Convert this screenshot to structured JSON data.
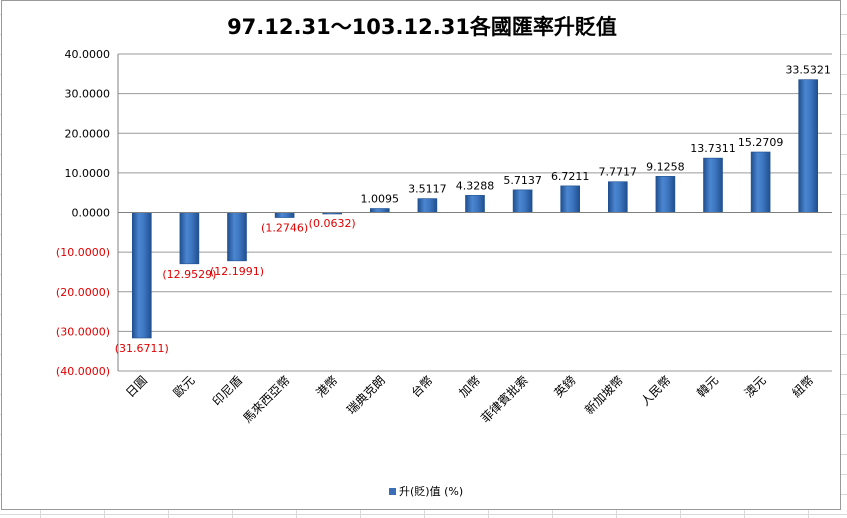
{
  "chart_data": {
    "type": "bar",
    "title": "97.12.31～103.12.31各國匯率升貶值",
    "categories": [
      "日圓",
      "歐元",
      "印尼盾",
      "馬來西亞幣",
      "港幣",
      "瑞典克朗",
      "台幣",
      "加幣",
      "菲律賓批索",
      "英鎊",
      "新加坡幣",
      "人民幣",
      "韓元",
      "澳元",
      "紐幣"
    ],
    "series": [
      {
        "name": "升(貶)值 (%)",
        "values": [
          -31.6711,
          -12.9529,
          -12.1991,
          -1.2746,
          -0.0632,
          1.0095,
          3.5117,
          4.3288,
          5.7137,
          6.7211,
          7.7717,
          9.1258,
          13.7311,
          15.2709,
          33.5321
        ]
      }
    ],
    "data_labels": [
      "(31.6711)",
      "(12.9529)",
      "(12.1991)",
      "(1.2746)",
      "(0.0632)",
      "1.0095",
      "3.5117",
      "4.3288",
      "5.7137",
      "6.7211",
      "7.7717",
      "9.1258",
      "13.7311",
      "15.2709",
      "33.5321"
    ],
    "ylim": [
      -40,
      40
    ],
    "ytick_values": [
      40,
      30,
      20,
      10,
      0,
      -10,
      -20,
      -30,
      -40
    ],
    "ytick_labels": [
      "40.0000",
      "30.0000",
      "20.0000",
      "10.0000",
      "0.0000",
      "(10.0000)",
      "(20.0000)",
      "(30.0000)",
      "(40.0000)"
    ],
    "grid": true,
    "legend_position": "bottom",
    "colors": {
      "bar": "#3a6fb8",
      "bar_dark": "#1f4f8f",
      "negative_text": "#e00000",
      "grid": "#9a9a9a"
    }
  }
}
